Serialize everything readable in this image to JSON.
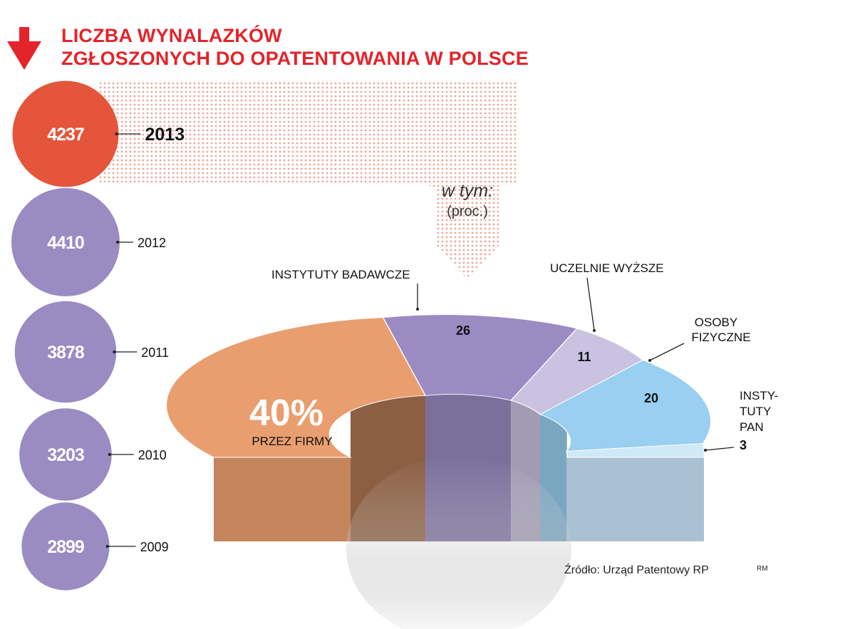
{
  "title": {
    "line1": "LICZBA WYNALAZKÓW",
    "line2": "ZGŁOSZONYCH DO OPATENTOWANIA W POLSCE"
  },
  "icons": {
    "header": "arrow-down-icon"
  },
  "colors": {
    "title": "#e3242b",
    "highlight_year": "#e4553b",
    "past_years": "#9a8bc3",
    "firmy": "#e99e6f",
    "instytuty_badawcze": "#9a8bc3",
    "uczelnie": "#c9c2e0",
    "osoby_fizyczne": "#99cff0",
    "instytuty_pan": "#cfe9f8",
    "dots": "#e9a79a"
  },
  "breakdown_heading": {
    "line1": "w tym:",
    "line2": "(proc.)"
  },
  "source": "Źródło: Urząd Patentowy RP",
  "author": "RM",
  "chart_data": [
    {
      "type": "bubble",
      "unit": "",
      "categories": [
        "2013",
        "2012",
        "2011",
        "2010",
        "2009"
      ],
      "values": [
        4237,
        4410,
        3878,
        3203,
        2899
      ],
      "highlight": "2013"
    },
    {
      "type": "pie",
      "variant": "half-donut",
      "unit": "%",
      "year": "2013",
      "slices": [
        {
          "label": "PRZEZ FIRMY",
          "value": 40,
          "display": "40%",
          "color": "#e99e6f"
        },
        {
          "label": "INSTYTUTY BADAWCZE",
          "value": 26,
          "display": "26",
          "color": "#9a8bc3"
        },
        {
          "label": "UCZELNIE WYŻSZE",
          "value": 11,
          "display": "11",
          "color": "#c9c2e0"
        },
        {
          "label": "OSOBY FIZYCZNE",
          "value": 20,
          "display": "20",
          "color": "#99cff0"
        },
        {
          "label": "INSTY- TUTY PAN",
          "value": 3,
          "display": "3",
          "color": "#cfe9f8"
        }
      ],
      "callout_lines": {
        "osoby_fizyczne": [
          "OSOBY",
          "FIZYCZNE"
        ],
        "instytuty_pan": [
          "INSTY-",
          "TUTY",
          "PAN"
        ]
      }
    }
  ]
}
